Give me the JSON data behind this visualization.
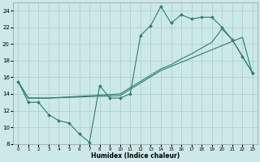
{
  "xlabel": "Humidex (Indice chaleur)",
  "bg_color": "#cce8e8",
  "grid_color": "#aacccc",
  "line_color": "#2e7d6e",
  "xlim": [
    -0.5,
    23.5
  ],
  "ylim": [
    8,
    25
  ],
  "xticks": [
    0,
    1,
    2,
    3,
    4,
    5,
    6,
    7,
    8,
    9,
    10,
    11,
    12,
    13,
    14,
    15,
    16,
    17,
    18,
    19,
    20,
    21,
    22,
    23
  ],
  "yticks": [
    8,
    10,
    12,
    14,
    16,
    18,
    20,
    22,
    24
  ],
  "line1_x": [
    0,
    1,
    2,
    3,
    4,
    5,
    6,
    7,
    8,
    9,
    10,
    11,
    12,
    13,
    14,
    15,
    16,
    17,
    18,
    19,
    20,
    21,
    22,
    23
  ],
  "line1_y": [
    15.5,
    13.0,
    13.0,
    11.5,
    10.8,
    10.5,
    9.2,
    8.2,
    15.0,
    13.5,
    13.5,
    14.0,
    21.0,
    22.2,
    24.5,
    22.5,
    23.5,
    23.0,
    23.2,
    23.2,
    22.0,
    20.5,
    18.5,
    16.5
  ],
  "line2_x": [
    0,
    1,
    3,
    10,
    14,
    15,
    16,
    17,
    18,
    19,
    20,
    21,
    22,
    23
  ],
  "line2_y": [
    15.5,
    13.5,
    13.5,
    14.0,
    17.0,
    17.5,
    18.2,
    18.8,
    19.5,
    20.2,
    21.8,
    20.5,
    18.5,
    16.5
  ],
  "line3_x": [
    0,
    1,
    2,
    3,
    10,
    14,
    15,
    16,
    17,
    18,
    19,
    20,
    21,
    22,
    23
  ],
  "line3_y": [
    15.5,
    13.5,
    13.5,
    13.5,
    13.8,
    16.8,
    17.3,
    17.8,
    18.3,
    18.8,
    19.3,
    19.8,
    20.3,
    20.8,
    16.3
  ]
}
